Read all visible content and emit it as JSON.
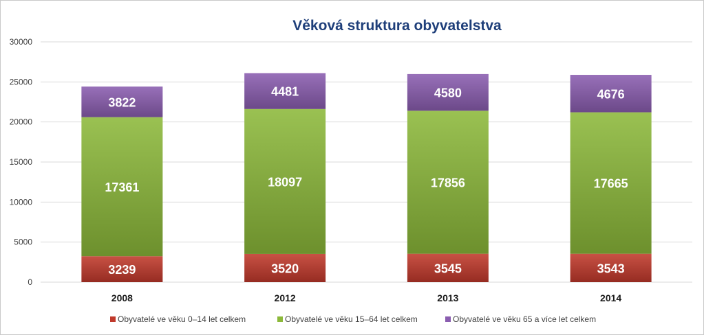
{
  "chart_data": {
    "type": "bar",
    "stacked": true,
    "title": "Věková struktura obyvatelstva",
    "categories": [
      "2008",
      "2012",
      "2013",
      "2014"
    ],
    "series": [
      {
        "name": "Obyvatelé ve věku 0–14 let celkem",
        "values": [
          3239,
          3520,
          3545,
          3543
        ],
        "color": "#c0392b"
      },
      {
        "name": "Obyvatelé ve věku 15–64 let celkem",
        "values": [
          17361,
          18097,
          17856,
          17665
        ],
        "color": "#8cb93a"
      },
      {
        "name": "Obyvatelé ve věku 65 a více let celkem",
        "values": [
          3822,
          4481,
          4580,
          4676
        ],
        "color": "#8a5db0"
      }
    ],
    "yticks": [
      0,
      5000,
      10000,
      15000,
      20000,
      25000,
      30000
    ],
    "ylim": [
      0,
      30000
    ],
    "grid": true,
    "legend": "bottom"
  }
}
